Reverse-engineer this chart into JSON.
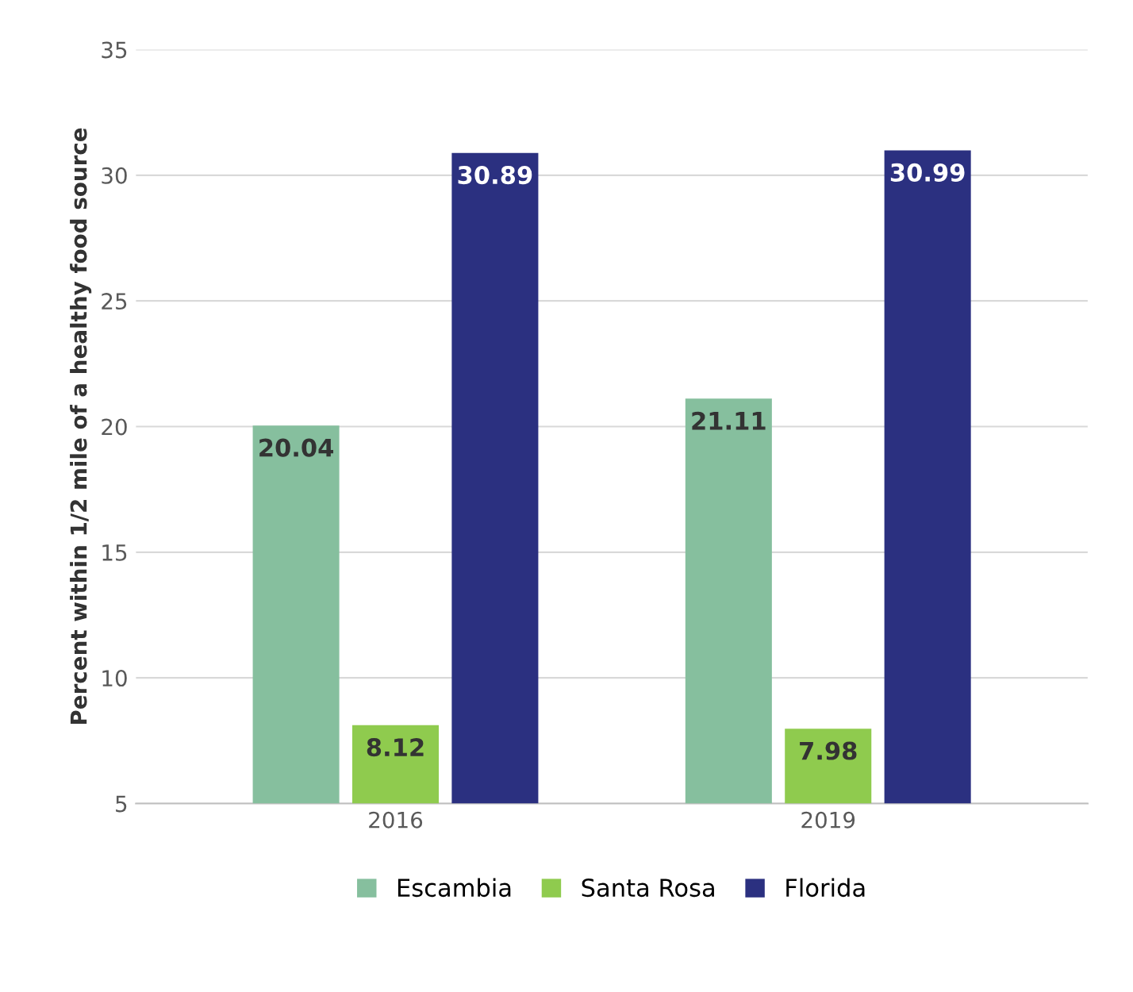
{
  "chart_data": {
    "type": "bar",
    "ylabel": "Percent within 1/2 mile of a healthy food source",
    "categories": [
      "2016",
      "2019"
    ],
    "series": [
      {
        "name": "Escambia",
        "color": "#86bf9e",
        "values": [
          20.04,
          21.11
        ]
      },
      {
        "name": "Santa Rosa",
        "color": "#8fcb4e",
        "values": [
          8.12,
          7.98
        ]
      },
      {
        "name": "Florida",
        "color": "#2b3080",
        "values": [
          30.89,
          30.99
        ]
      }
    ],
    "ylim": [
      5,
      35
    ],
    "yticks": [
      5,
      10,
      15,
      20,
      25,
      30,
      35
    ],
    "grid": "y",
    "legend": "bottom",
    "data_labels": true
  }
}
